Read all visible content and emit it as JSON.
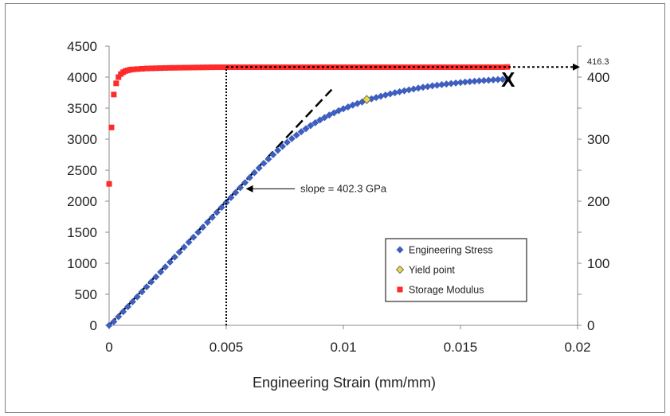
{
  "chart_data": {
    "type": "scatter",
    "title": "",
    "xlabel": "Engineering Strain (mm/mm)",
    "ylabel": "",
    "y2label": "",
    "xlim": [
      0,
      0.02
    ],
    "ylim": [
      0,
      4500
    ],
    "y2lim": [
      0,
      450
    ],
    "x_ticks": [
      "0",
      "0.005",
      "0.01",
      "0.015",
      "0.02"
    ],
    "y_ticks": [
      "0",
      "500",
      "1000",
      "1500",
      "2000",
      "2500",
      "3000",
      "3500",
      "4000",
      "4500"
    ],
    "y2_ticks": [
      "0",
      "100",
      "200",
      "300",
      "400"
    ],
    "grid": false,
    "legend": {
      "position": "bottom-right"
    },
    "series": [
      {
        "name": "Engineering Stress",
        "axis": "left",
        "marker": "diamond",
        "color": "#3f5fbf",
        "x": [
          0,
          0.0002,
          0.0004,
          0.0006,
          0.0008,
          0.001,
          0.0012,
          0.0014,
          0.0016,
          0.0018,
          0.002,
          0.0022,
          0.0024,
          0.0026,
          0.0028,
          0.003,
          0.0032,
          0.0034,
          0.0036,
          0.0038,
          0.004,
          0.0042,
          0.0044,
          0.0046,
          0.0048,
          0.005,
          0.0052,
          0.0054,
          0.0056,
          0.0058,
          0.006,
          0.0062,
          0.0064,
          0.0066,
          0.0068,
          0.007,
          0.0072,
          0.0074,
          0.0076,
          0.0078,
          0.008,
          0.0082,
          0.0084,
          0.0086,
          0.0088,
          0.009,
          0.0092,
          0.0094,
          0.0096,
          0.0098,
          0.01,
          0.0102,
          0.0104,
          0.0106,
          0.0108,
          0.011,
          0.0112,
          0.0114,
          0.0116,
          0.0118,
          0.012,
          0.0122,
          0.0124,
          0.0126,
          0.0128,
          0.013,
          0.0132,
          0.0134,
          0.0136,
          0.0138,
          0.014,
          0.0142,
          0.0144,
          0.0146,
          0.0148,
          0.015,
          0.0152,
          0.0154,
          0.0156,
          0.0158,
          0.016,
          0.0162,
          0.0164,
          0.0166,
          0.0168,
          0.017
        ],
        "y": [
          0,
          60,
          140,
          220,
          300,
          380,
          460,
          540,
          620,
          700,
          780,
          860,
          940,
          1020,
          1100,
          1180,
          1260,
          1340,
          1420,
          1500,
          1580,
          1660,
          1740,
          1820,
          1900,
          1980,
          2060,
          2140,
          2220,
          2300,
          2380,
          2460,
          2535,
          2610,
          2680,
          2750,
          2820,
          2885,
          2950,
          3010,
          3065,
          3120,
          3170,
          3220,
          3265,
          3310,
          3350,
          3390,
          3425,
          3460,
          3490,
          3520,
          3550,
          3575,
          3600,
          3625,
          3650,
          3672,
          3692,
          3712,
          3730,
          3748,
          3764,
          3780,
          3795,
          3810,
          3823,
          3836,
          3848,
          3860,
          3870,
          3880,
          3890,
          3898,
          3906,
          3914,
          3921,
          3928,
          3934,
          3940,
          3946,
          3951,
          3956,
          3961,
          3965,
          3970
        ]
      },
      {
        "name": "Yield point",
        "axis": "left",
        "marker": "diamond",
        "color": "#e8d84a",
        "x": [
          0.011
        ],
        "y": [
          3640
        ]
      },
      {
        "name": "Storage Modulus",
        "axis": "right",
        "marker": "square",
        "color": "#ff2a2a",
        "x": [
          0,
          0.0001,
          0.0002,
          0.0003,
          0.0004,
          0.0005,
          0.0006,
          0.0007,
          0.0008,
          0.0009,
          0.001,
          0.0012,
          0.0014,
          0.0016,
          0.0018,
          0.002,
          0.0022,
          0.0024,
          0.0026,
          0.0028,
          0.003,
          0.0032,
          0.0034,
          0.0036,
          0.0038,
          0.004,
          0.0042,
          0.0044,
          0.0046,
          0.0048,
          0.005,
          0.0052,
          0.0054,
          0.0056,
          0.0058,
          0.006,
          0.0062,
          0.0064,
          0.0066,
          0.0068,
          0.007,
          0.0072,
          0.0074,
          0.0076,
          0.0078,
          0.008,
          0.0082,
          0.0084,
          0.0086,
          0.0088,
          0.009,
          0.0092,
          0.0094,
          0.0096,
          0.0098,
          0.01,
          0.0102,
          0.0104,
          0.0106,
          0.0108,
          0.011,
          0.0112,
          0.0114,
          0.0116,
          0.0118,
          0.012,
          0.0122,
          0.0124,
          0.0126,
          0.0128,
          0.013,
          0.0132,
          0.0134,
          0.0136,
          0.0138,
          0.014,
          0.0142,
          0.0144,
          0.0146,
          0.0148,
          0.015,
          0.0152,
          0.0154,
          0.0156,
          0.0158,
          0.016,
          0.0162,
          0.0164,
          0.0166,
          0.0168,
          0.017
        ],
        "y": [
          228,
          319,
          372,
          390,
          400,
          405,
          408,
          410,
          411,
          412,
          412.5,
          413,
          413.5,
          414,
          414.2,
          414.4,
          414.6,
          414.8,
          415,
          415.1,
          415.2,
          415.3,
          415.4,
          415.5,
          415.6,
          415.7,
          415.8,
          415.9,
          416,
          416,
          416,
          416,
          416,
          416,
          416,
          416,
          416,
          416,
          416,
          416,
          416,
          416,
          416,
          416,
          416,
          416,
          416,
          416,
          416,
          416,
          416,
          416,
          416,
          416,
          416,
          416,
          416,
          416,
          416,
          416,
          416,
          416,
          416,
          416,
          416,
          416,
          416,
          416,
          416,
          416,
          416,
          416,
          416,
          416,
          416,
          416,
          416,
          416,
          416,
          416,
          416,
          416,
          416,
          416,
          416,
          416,
          416,
          416,
          416,
          416,
          416.3
        ]
      }
    ],
    "fit_line": {
      "style": "dashed",
      "color": "#000000",
      "x": [
        0,
        0.0095
      ],
      "y": [
        0,
        3800
      ]
    },
    "vertical_marker": {
      "style": "dotted",
      "color": "#000000",
      "x": 0.005,
      "y_top_right": 416.3
    },
    "annotations": {
      "slope_label": "slope = 402.3 GPa",
      "slope_target": {
        "x": 0.0058,
        "y": 2200
      },
      "final_value_label": "416.3",
      "fracture_label": "X",
      "fracture_point": {
        "x": 0.017,
        "y": 3975
      }
    }
  }
}
